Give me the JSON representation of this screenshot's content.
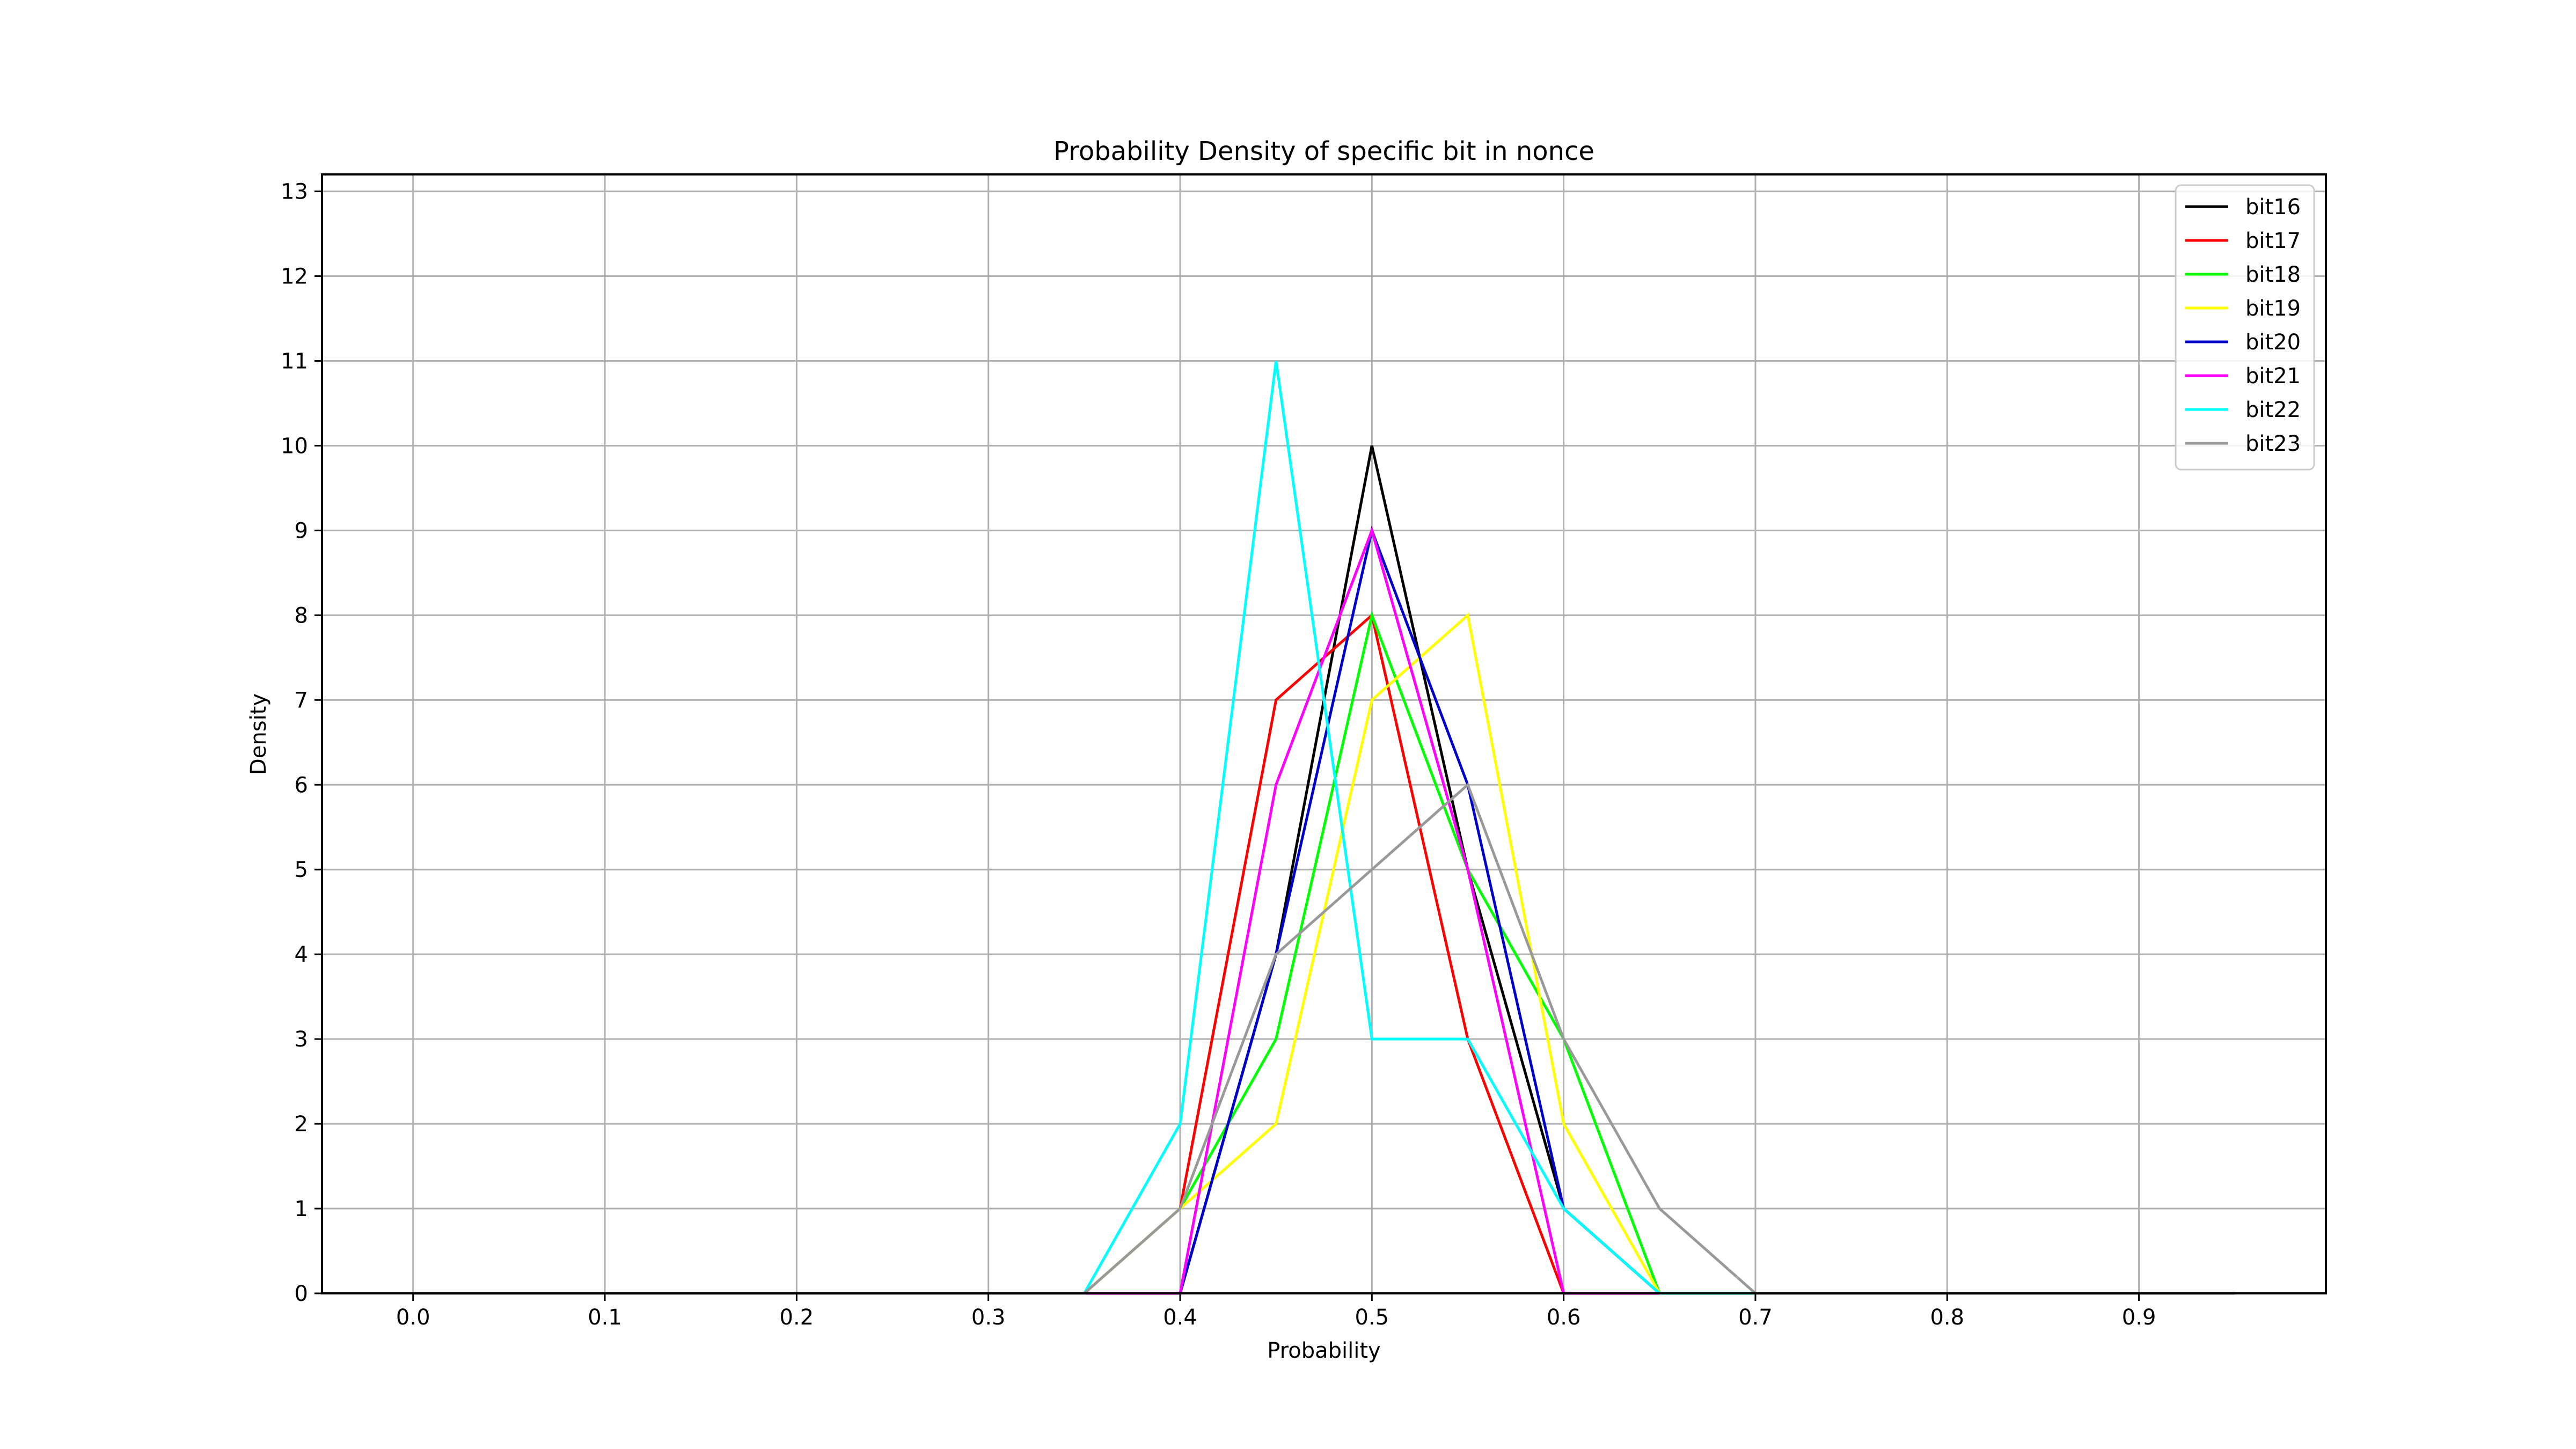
{
  "chart_data": {
    "type": "line",
    "title": "Probability Density of specific bit in nonce",
    "xlabel": "Probability",
    "ylabel": "Density",
    "xlim": [
      -0.0475,
      0.9975
    ],
    "ylim": [
      0,
      13.2
    ],
    "xticks": [
      "0.0",
      "0.1",
      "0.2",
      "0.3",
      "0.4",
      "0.5",
      "0.6",
      "0.7",
      "0.8",
      "0.9"
    ],
    "yticks": [
      "0",
      "1",
      "2",
      "3",
      "4",
      "5",
      "6",
      "7",
      "8",
      "9",
      "10",
      "11",
      "12",
      "13"
    ],
    "grid": true,
    "legend_position": "top-right",
    "x": [
      0.0,
      0.05,
      0.1,
      0.15,
      0.2,
      0.25,
      0.3,
      0.35,
      0.4,
      0.45,
      0.5,
      0.55,
      0.6,
      0.65,
      0.7,
      0.75,
      0.8,
      0.85,
      0.9,
      0.95
    ],
    "series": [
      {
        "name": "bit16",
        "color": "#000000",
        "values": [
          0,
          0,
          0,
          0,
          0,
          0,
          0,
          0,
          0,
          4,
          10,
          5,
          1,
          0,
          0,
          0,
          0,
          0,
          0,
          0
        ]
      },
      {
        "name": "bit17",
        "color": "#ff0000",
        "values": [
          0,
          0,
          0,
          0,
          0,
          0,
          0,
          0,
          1,
          7,
          8,
          3,
          0,
          0,
          0,
          0,
          0,
          0,
          0,
          0
        ]
      },
      {
        "name": "bit18",
        "color": "#00ff00",
        "values": [
          0,
          0,
          0,
          0,
          0,
          0,
          0,
          0,
          1,
          3,
          8,
          5,
          3,
          0,
          0,
          0,
          0,
          0,
          0,
          0
        ]
      },
      {
        "name": "bit19",
        "color": "#ffff00",
        "values": [
          0,
          0,
          0,
          0,
          0,
          0,
          0,
          0,
          1,
          2,
          7,
          8,
          2,
          0,
          0,
          0,
          0,
          0,
          0,
          0
        ]
      },
      {
        "name": "bit20",
        "color": "#0000cc",
        "values": [
          0,
          0,
          0,
          0,
          0,
          0,
          0,
          0,
          0,
          4,
          9,
          6,
          1,
          0,
          0,
          0,
          0,
          0,
          0,
          0
        ]
      },
      {
        "name": "bit21",
        "color": "#ff00ff",
        "values": [
          0,
          0,
          0,
          0,
          0,
          0,
          0,
          0,
          0,
          6,
          9,
          5,
          0,
          0,
          0,
          0,
          0,
          0,
          0,
          0
        ]
      },
      {
        "name": "bit22",
        "color": "#00ffff",
        "values": [
          0,
          0,
          0,
          0,
          0,
          0,
          0,
          0,
          2,
          11,
          3,
          3,
          1,
          0,
          0,
          0,
          0,
          0,
          0,
          0
        ]
      },
      {
        "name": "bit23",
        "color": "#999999",
        "values": [
          0,
          0,
          0,
          0,
          0,
          0,
          0,
          0,
          1,
          4,
          5,
          6,
          3,
          1,
          0,
          0,
          0,
          0,
          0,
          0
        ]
      }
    ]
  }
}
